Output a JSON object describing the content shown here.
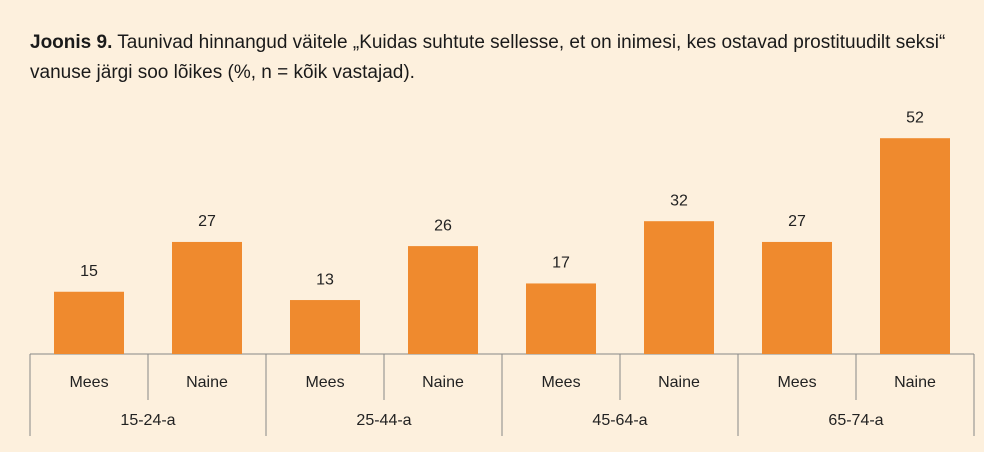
{
  "chart_data": {
    "type": "bar",
    "title_label": "Joonis 9.",
    "title": "Taunivad hinnangud väitele „Kuidas suhtute sellesse, et on inimesi, kes ostavad prostituudilt seksi“ vanuse järgi soo lõikes (%, n = kõik vastajad).",
    "categories": [
      "Mees",
      "Naine",
      "Mees",
      "Naine",
      "Mees",
      "Naine",
      "Mees",
      "Naine"
    ],
    "groups": [
      "15-24-a",
      "25-44-a",
      "45-64-a",
      "65-74-a"
    ],
    "values": [
      15,
      27,
      13,
      26,
      17,
      32,
      27,
      52
    ],
    "color": "#ef8a2e"
  }
}
